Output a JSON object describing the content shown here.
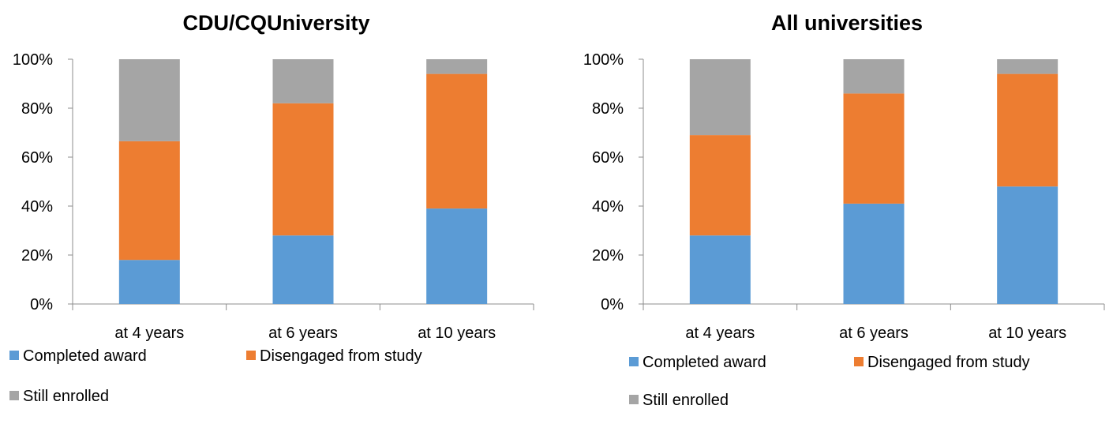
{
  "chart_data": [
    {
      "type": "bar",
      "stacked": true,
      "percent": true,
      "title": "CDU/CQUniversity",
      "categories": [
        "at 4 years",
        "at 6 years",
        "at 10 years"
      ],
      "series": [
        {
          "name": "Completed award",
          "color": "#5B9BD5",
          "values": [
            18,
            28,
            39
          ]
        },
        {
          "name": "Disengaged from study",
          "color": "#ED7D31",
          "values": [
            48.5,
            54,
            55
          ]
        },
        {
          "name": "Still enrolled",
          "color": "#A5A5A5",
          "values": [
            33.5,
            18,
            6
          ]
        }
      ],
      "yticks": [
        "0%",
        "20%",
        "40%",
        "60%",
        "80%",
        "100%"
      ],
      "ylim": [
        0,
        100
      ],
      "legend_position": "bottom"
    },
    {
      "type": "bar",
      "stacked": true,
      "percent": true,
      "title": "All universities",
      "categories": [
        "at 4 years",
        "at 6 years",
        "at 10 years"
      ],
      "series": [
        {
          "name": "Completed award",
          "color": "#5B9BD5",
          "values": [
            28,
            41,
            48
          ]
        },
        {
          "name": "Disengaged from study",
          "color": "#ED7D31",
          "values": [
            41,
            45,
            46
          ]
        },
        {
          "name": "Still enrolled",
          "color": "#A5A5A5",
          "values": [
            31,
            14,
            6
          ]
        }
      ],
      "yticks": [
        "0%",
        "20%",
        "40%",
        "60%",
        "80%",
        "100%"
      ],
      "ylim": [
        0,
        100
      ],
      "legend_position": "bottom"
    }
  ]
}
